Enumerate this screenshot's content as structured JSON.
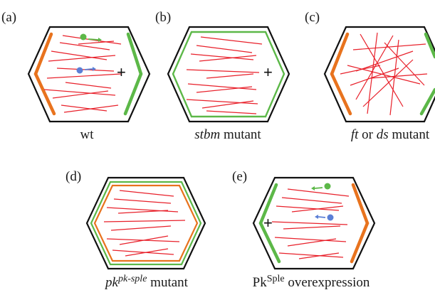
{
  "panels": [
    {
      "letter": "(a)",
      "caption": "wt",
      "plus": "+"
    },
    {
      "letter": "(b)",
      "caption_italic": "stbm",
      "caption_rest": " mutant",
      "plus": "+"
    },
    {
      "letter": "(c)",
      "caption_italic_1": "ft",
      "caption_mid": " or ",
      "caption_italic_2": "ds",
      "caption_rest": " mutant"
    },
    {
      "letter": "(d)",
      "caption_base": "pk",
      "caption_sup": "pk-sple",
      "caption_rest": " mutant"
    },
    {
      "letter": "(e)",
      "caption_base": "Pk",
      "caption_sup": "Sple",
      "caption_rest": " overexpression",
      "plus": "+"
    }
  ],
  "colors": {
    "orange": "#e8731e",
    "green": "#5cb848",
    "red": "#e8202a",
    "blue": "#5b7fd6",
    "outline": "#111111"
  }
}
